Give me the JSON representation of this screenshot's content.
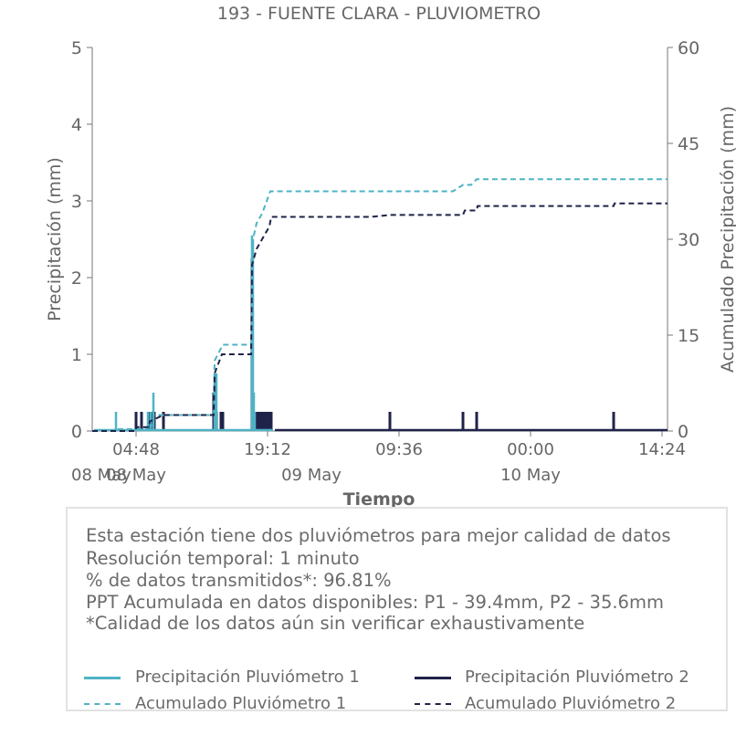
{
  "chart_data": {
    "type": "bar+line",
    "title": "193 - FUENTE CLARA - PLUVIOMETRO",
    "xlabel": "Tiempo",
    "ylabel_left": "Precipitación (mm)",
    "ylabel_right": "Acumulado Precipitación (mm)",
    "ylim_left": [
      0,
      5
    ],
    "ylim_right": [
      0,
      60
    ],
    "yticks_left": [
      "0",
      "1",
      "2",
      "3",
      "4",
      "5"
    ],
    "yticks_right": [
      "0",
      "15",
      "30",
      "45",
      "60"
    ],
    "xlim_hours": [
      0,
      63
    ],
    "xticks": [
      {
        "hour": 4.8,
        "label": "04:48",
        "date": "08 May"
      },
      {
        "hour": 19.2,
        "label": "19:12",
        "date": ""
      },
      {
        "hour": 24,
        "label": "",
        "date": "09 May"
      },
      {
        "hour": 33.6,
        "label": "09:36",
        "date": ""
      },
      {
        "hour": 48,
        "label": "00:00",
        "date": "10 May"
      },
      {
        "hour": 62.4,
        "label": "14:24",
        "date": ""
      }
    ],
    "xlabels_date_extra": [
      {
        "hour": 0,
        "label": "08 May"
      }
    ],
    "colors": {
      "p1": "#4fb3c4",
      "p2": "#1f2349",
      "text": "#666666",
      "axis": "#777777"
    },
    "series": [
      {
        "name": "Precipitación Pluviómetro 1",
        "kind": "bar",
        "axis": "left",
        "points": [
          [
            2.6,
            0.25
          ],
          [
            6.1,
            0.25
          ],
          [
            6.4,
            0.25
          ],
          [
            6.7,
            0.5
          ],
          [
            13.4,
            0.5
          ],
          [
            13.6,
            0.75
          ],
          [
            17.5,
            2.55
          ],
          [
            17.6,
            2.5
          ],
          [
            17.7,
            0.5
          ],
          [
            17.8,
            0.25
          ]
        ]
      },
      {
        "name": "Precipitación Pluviómetro 2",
        "kind": "bar",
        "axis": "left",
        "points": [
          [
            4.8,
            0.25
          ],
          [
            5.4,
            0.25
          ],
          [
            6.2,
            0.25
          ],
          [
            6.5,
            0.25
          ],
          [
            6.8,
            0.25
          ],
          [
            7.8,
            0.25
          ],
          [
            13.3,
            0.5
          ],
          [
            13.5,
            0.75
          ],
          [
            13.6,
            0.25
          ],
          [
            14.1,
            0.25
          ],
          [
            14.3,
            0.25
          ],
          [
            17.5,
            2.25
          ],
          [
            17.6,
            0.5
          ],
          [
            17.8,
            0.25
          ],
          [
            18.0,
            0.25
          ],
          [
            18.2,
            0.25
          ],
          [
            18.4,
            0.25
          ],
          [
            18.6,
            0.25
          ],
          [
            18.8,
            0.25
          ],
          [
            19.0,
            0.25
          ],
          [
            19.2,
            0.25
          ],
          [
            19.4,
            0.25
          ],
          [
            19.6,
            0.25
          ],
          [
            32.6,
            0.25
          ],
          [
            40.6,
            0.25
          ],
          [
            42.1,
            0.25
          ],
          [
            57.1,
            0.25
          ]
        ]
      },
      {
        "name": "Acumulado Pluviómetro 1",
        "kind": "line-dashed",
        "axis": "right",
        "points": [
          [
            0,
            0
          ],
          [
            2.6,
            0
          ],
          [
            2.6,
            0.3
          ],
          [
            6.1,
            0.3
          ],
          [
            6.1,
            0.9
          ],
          [
            6.7,
            0.9
          ],
          [
            6.7,
            2.5
          ],
          [
            13.3,
            2.5
          ],
          [
            13.4,
            11
          ],
          [
            14.3,
            13.5
          ],
          [
            17.4,
            13.5
          ],
          [
            17.5,
            17
          ],
          [
            17.6,
            30
          ],
          [
            18.0,
            32.5
          ],
          [
            18.6,
            34
          ],
          [
            19.5,
            37.5
          ],
          [
            39.5,
            37.5
          ],
          [
            40.6,
            38.5
          ],
          [
            41.5,
            38.5
          ],
          [
            42.1,
            39.4
          ],
          [
            63,
            39.4
          ]
        ]
      },
      {
        "name": "Acumulado Pluviómetro 2",
        "kind": "line-dashed",
        "axis": "right",
        "points": [
          [
            0,
            0
          ],
          [
            4.8,
            0
          ],
          [
            4.8,
            0.6
          ],
          [
            6.2,
            0.6
          ],
          [
            6.3,
            1.5
          ],
          [
            7.8,
            2.5
          ],
          [
            13.3,
            2.5
          ],
          [
            13.4,
            9
          ],
          [
            14.2,
            12
          ],
          [
            17.4,
            12
          ],
          [
            17.5,
            26
          ],
          [
            18.0,
            28.5
          ],
          [
            18.6,
            30
          ],
          [
            19.4,
            32
          ],
          [
            19.6,
            33.5
          ],
          [
            30.5,
            33.5
          ],
          [
            32.6,
            33.8
          ],
          [
            40.6,
            33.8
          ],
          [
            40.8,
            34.5
          ],
          [
            42.1,
            34.5
          ],
          [
            42.2,
            35.2
          ],
          [
            57.1,
            35.2
          ],
          [
            57.2,
            35.6
          ],
          [
            63,
            35.6
          ]
        ]
      }
    ],
    "legend_placement": "bottom, inside info box, two columns"
  },
  "info": {
    "line1": "Esta estación tiene dos pluviómetros para mejor calidad de datos",
    "line2": "Resolución temporal: 1 minuto",
    "line3": "% de datos transmitidos*: 96.81%",
    "line4": "PPT Acumulada en datos disponibles: P1 - 39.4mm, P2 - 35.6mm",
    "line5": "*Calidad de los datos aún sin verificar exhaustivamente"
  },
  "legend": {
    "p1_bar": "Precipitación Pluviómetro 1",
    "p2_bar": "Precipitación Pluviómetro 2",
    "p1_acc": "Acumulado Pluviómetro 1",
    "p2_acc": "Acumulado Pluviómetro 2"
  }
}
